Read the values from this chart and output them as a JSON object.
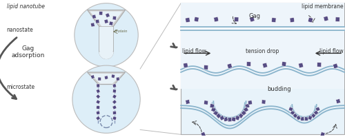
{
  "bg_color": "#ffffff",
  "right_bg": "#e8f3fa",
  "top_strip_bg": "#ddeef8",
  "membrane_color": "#8ab4cc",
  "gag_color": "#4a3f7a",
  "arrow_color": "#555555",
  "dark_arrow_color": "#444444",
  "text_color": "#333333",
  "circle_bg": "#ddeef8",
  "nanotube_fill": "#e8f2f8",
  "nanotube_gray": "#aaaaaa",
  "nanotube_dark": "#999999",
  "protein_label": "Protein",
  "label_lipid_nanotube": "lipid nanotube",
  "label_nanostate": "nanostate",
  "label_microstate": "microstate",
  "label_gag_adsorption": "Gag\nadsorption",
  "label_gag": "Gag",
  "label_lipid_flow_l": "lipid flow",
  "label_lipid_flow_r": "lipid flow",
  "label_tension_drop": "tension drop",
  "label_budding": "budding",
  "label_lipid_membrane": "lipid membrane"
}
